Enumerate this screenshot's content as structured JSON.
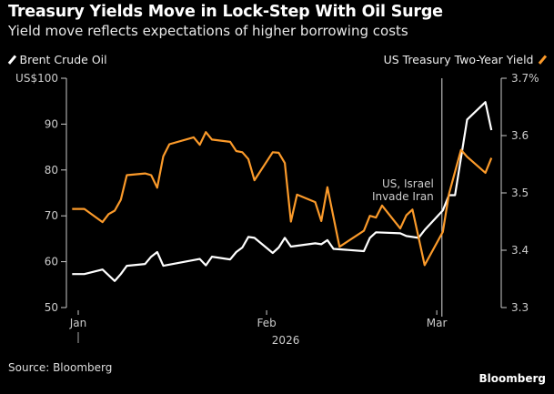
{
  "title": "Treasury Yields Move in Lock-Step With Oil Surge",
  "subtitle": "Yield move reflects expectations of higher borrowing costs",
  "source": "Source: Bloomberg",
  "brand": "Bloomberg",
  "chart_data": {
    "type": "line",
    "x_tick_labels": [
      "Jan",
      "Feb",
      "Mar"
    ],
    "x_ticks": [
      "2026-01-01",
      "2026-02-01",
      "2026-03-01"
    ],
    "x_year_label": "2026",
    "left_axis": {
      "ylim": [
        50,
        100
      ],
      "ticks": [
        50,
        60,
        70,
        80,
        90,
        100
      ],
      "tick_labels": [
        "50",
        "60",
        "70",
        "80",
        "90",
        "US$100"
      ]
    },
    "right_axis": {
      "ylim": [
        3.3,
        3.7
      ],
      "ticks": [
        3.3,
        3.4,
        3.5,
        3.6,
        3.7
      ],
      "tick_labels": [
        "3.3",
        "3.4",
        "3.5",
        "3.6",
        "3.7%"
      ]
    },
    "grid": false,
    "annotation": {
      "date": "2026-03-02",
      "lines": [
        "US, Israel",
        "Invade Iran"
      ]
    },
    "series": [
      {
        "name": "Brent Crude Oil",
        "axis": "left",
        "color": "#ffffff",
        "points": [
          [
            "2025-12-31",
            57.3
          ],
          [
            "2026-01-02",
            57.3
          ],
          [
            "2026-01-05",
            58.3
          ],
          [
            "2026-01-07",
            55.8
          ],
          [
            "2026-01-08",
            57.3
          ],
          [
            "2026-01-09",
            59.1
          ],
          [
            "2026-01-12",
            59.5
          ],
          [
            "2026-01-13",
            61.1
          ],
          [
            "2026-01-14",
            62.1
          ],
          [
            "2026-01-15",
            59.1
          ],
          [
            "2026-01-21",
            60.6
          ],
          [
            "2026-01-22",
            59.2
          ],
          [
            "2026-01-23",
            61.1
          ],
          [
            "2026-01-26",
            60.5
          ],
          [
            "2026-01-27",
            62.1
          ],
          [
            "2026-01-28",
            63.1
          ],
          [
            "2026-01-29",
            65.4
          ],
          [
            "2026-01-30",
            65.2
          ],
          [
            "2026-02-02",
            61.9
          ],
          [
            "2026-02-03",
            63.1
          ],
          [
            "2026-02-04",
            65.2
          ],
          [
            "2026-02-05",
            63.3
          ],
          [
            "2026-02-09",
            64.0
          ],
          [
            "2026-02-10",
            63.8
          ],
          [
            "2026-02-11",
            64.7
          ],
          [
            "2026-02-12",
            62.8
          ],
          [
            "2026-02-17",
            62.3
          ],
          [
            "2026-02-18",
            65.2
          ],
          [
            "2026-02-19",
            66.4
          ],
          [
            "2026-02-23",
            66.2
          ],
          [
            "2026-02-24",
            65.6
          ],
          [
            "2026-02-26",
            65.2
          ],
          [
            "2026-02-27",
            66.9
          ],
          [
            "2026-03-02",
            71.2
          ],
          [
            "2026-03-03",
            74.5
          ],
          [
            "2026-03-04",
            74.5
          ],
          [
            "2026-03-06",
            91.0
          ],
          [
            "2026-03-09",
            94.8
          ],
          [
            "2026-03-10",
            88.7
          ]
        ]
      },
      {
        "name": "US Treasury Two-Year Yield",
        "axis": "right",
        "color": "#fb9a2a",
        "points": [
          [
            "2025-12-31",
            3.472
          ],
          [
            "2026-01-02",
            3.472
          ],
          [
            "2026-01-05",
            3.449
          ],
          [
            "2026-01-06",
            3.463
          ],
          [
            "2026-01-07",
            3.469
          ],
          [
            "2026-01-08",
            3.488
          ],
          [
            "2026-01-09",
            3.531
          ],
          [
            "2026-01-12",
            3.534
          ],
          [
            "2026-01-13",
            3.531
          ],
          [
            "2026-01-14",
            3.509
          ],
          [
            "2026-01-15",
            3.564
          ],
          [
            "2026-01-16",
            3.585
          ],
          [
            "2026-01-20",
            3.597
          ],
          [
            "2026-01-21",
            3.584
          ],
          [
            "2026-01-22",
            3.606
          ],
          [
            "2026-01-23",
            3.593
          ],
          [
            "2026-01-26",
            3.589
          ],
          [
            "2026-01-27",
            3.573
          ],
          [
            "2026-01-28",
            3.571
          ],
          [
            "2026-01-29",
            3.559
          ],
          [
            "2026-01-30",
            3.522
          ],
          [
            "2026-02-02",
            3.571
          ],
          [
            "2026-02-03",
            3.57
          ],
          [
            "2026-02-04",
            3.552
          ],
          [
            "2026-02-05",
            3.45
          ],
          [
            "2026-02-06",
            3.497
          ],
          [
            "2026-02-09",
            3.484
          ],
          [
            "2026-02-10",
            3.451
          ],
          [
            "2026-02-11",
            3.51
          ],
          [
            "2026-02-13",
            3.406
          ],
          [
            "2026-02-17",
            3.434
          ],
          [
            "2026-02-18",
            3.46
          ],
          [
            "2026-02-19",
            3.457
          ],
          [
            "2026-02-20",
            3.478
          ],
          [
            "2026-02-23",
            3.438
          ],
          [
            "2026-02-24",
            3.461
          ],
          [
            "2026-02-25",
            3.471
          ],
          [
            "2026-02-27",
            3.374
          ],
          [
            "2026-03-02",
            3.432
          ],
          [
            "2026-03-03",
            3.498
          ],
          [
            "2026-03-05",
            3.575
          ],
          [
            "2026-03-06",
            3.563
          ],
          [
            "2026-03-09",
            3.535
          ],
          [
            "2026-03-10",
            3.561
          ]
        ]
      }
    ]
  }
}
